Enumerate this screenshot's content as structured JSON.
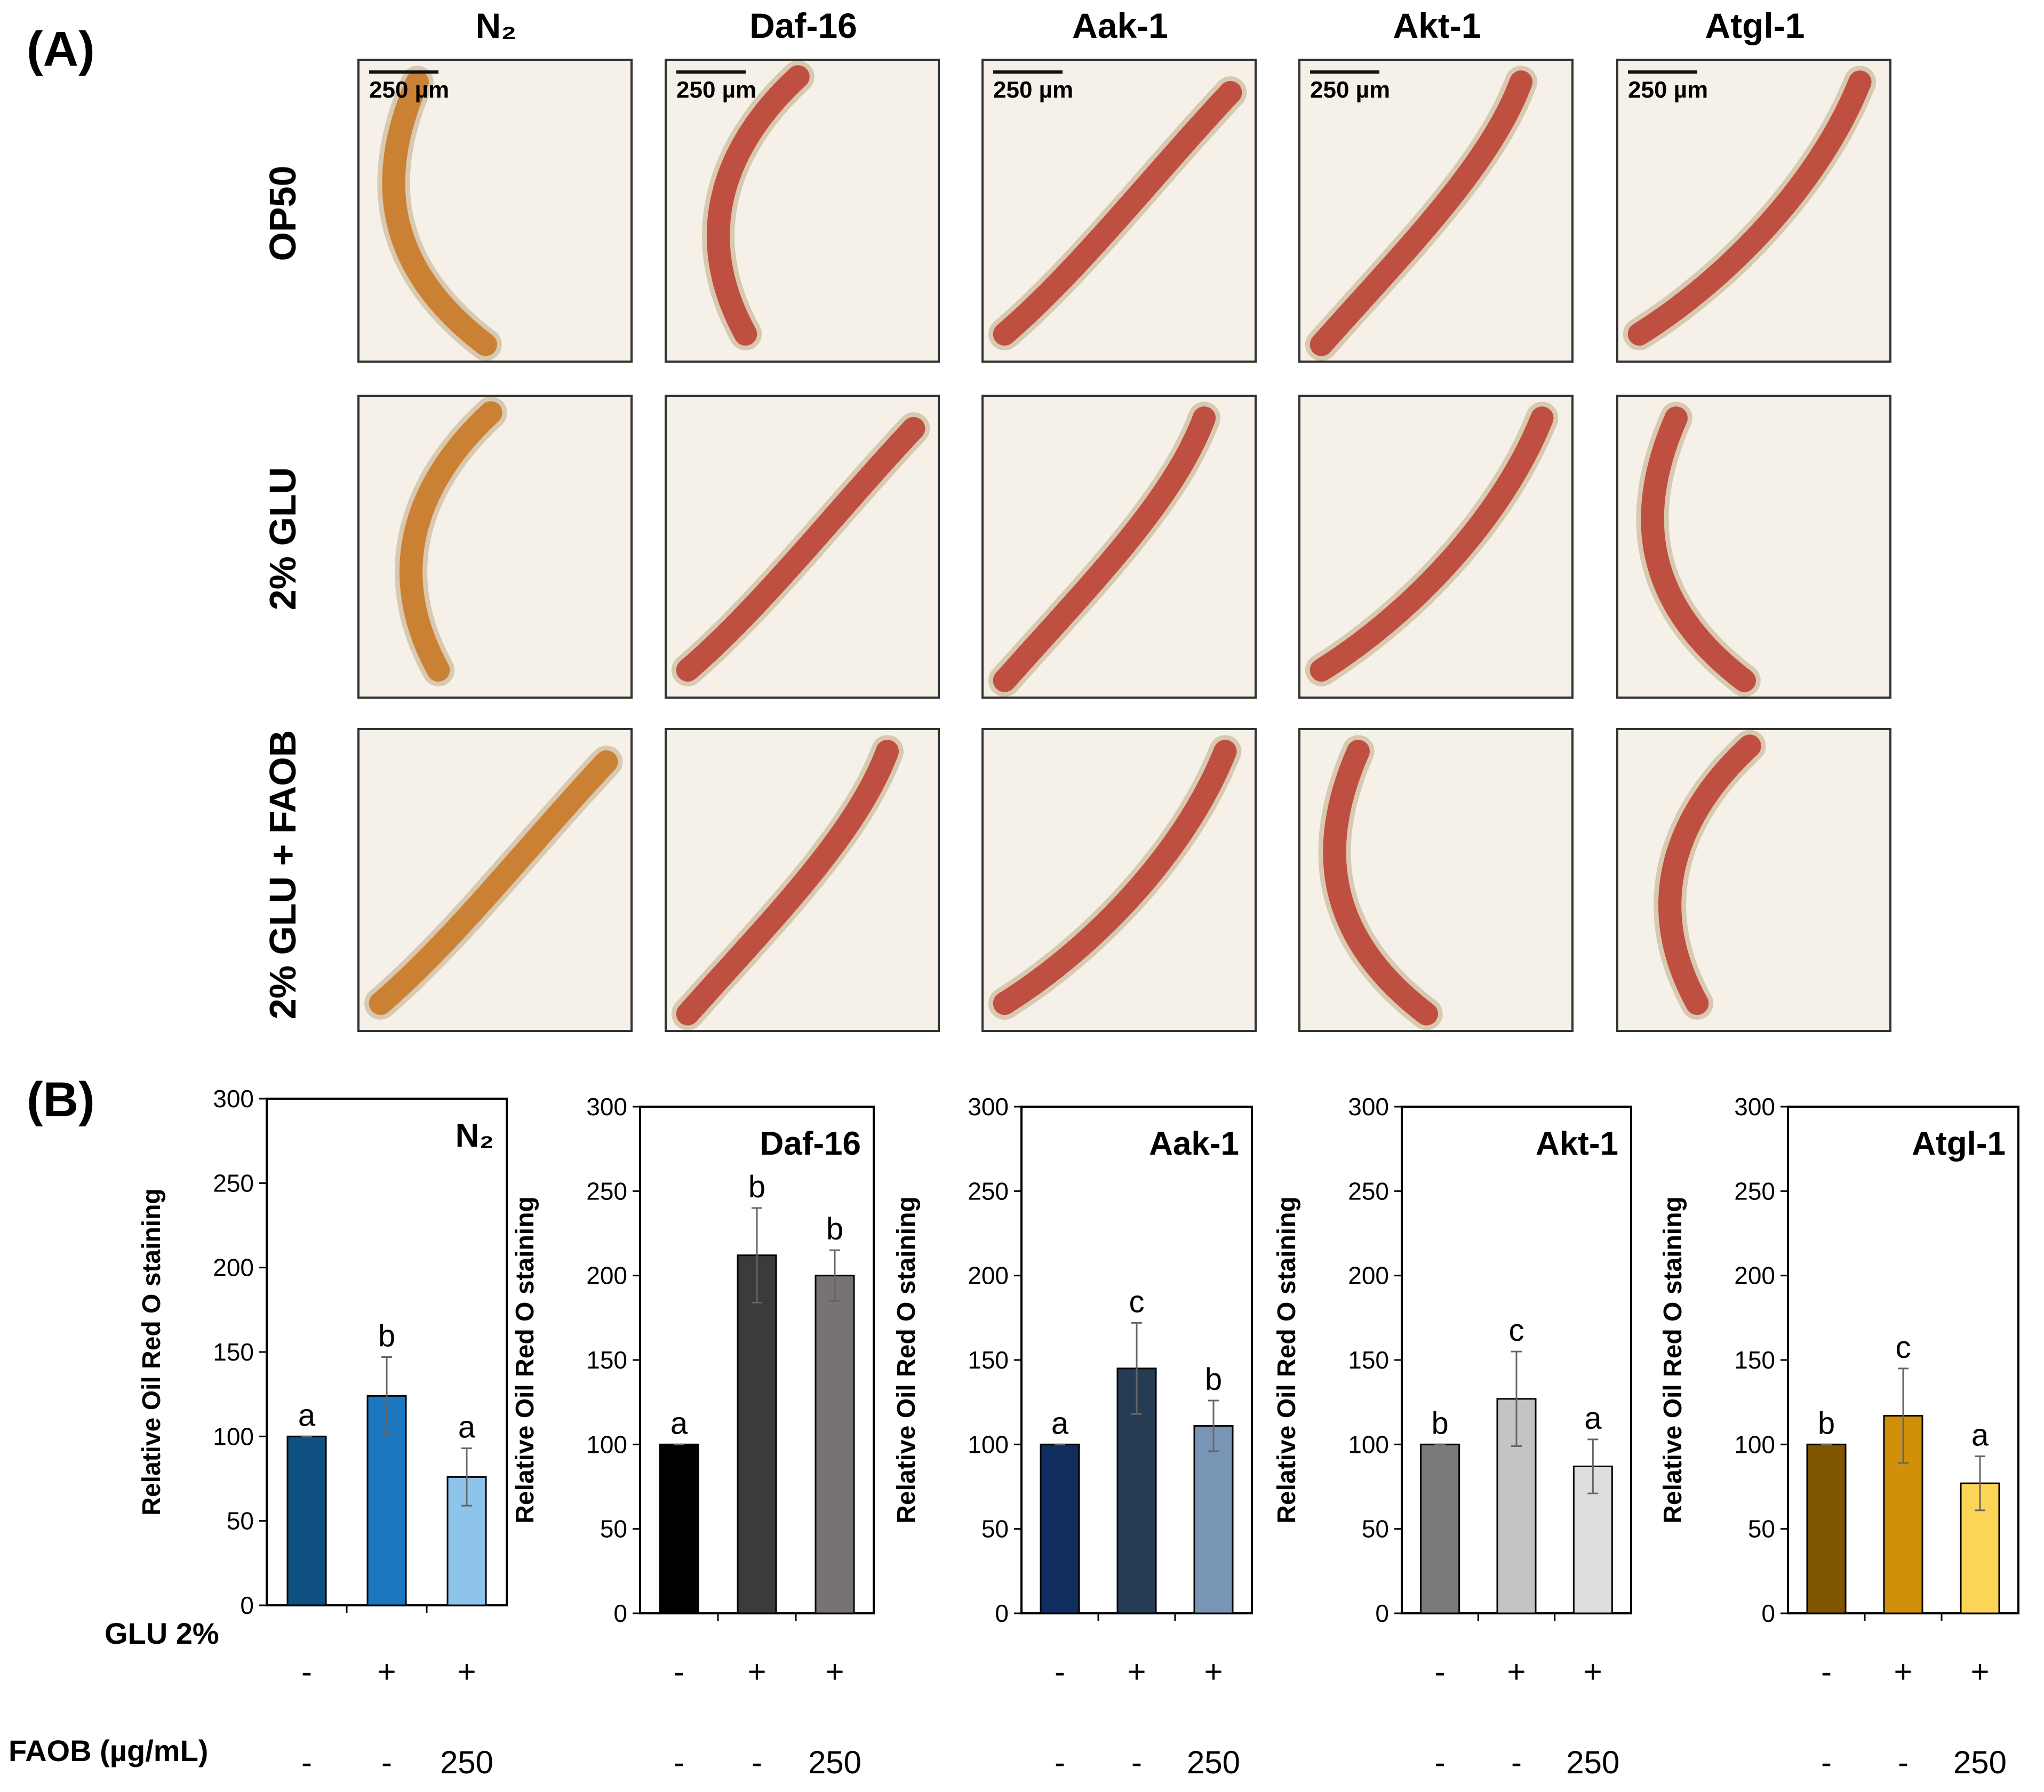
{
  "panel_a_label": "(A)",
  "panel_b_label": "(B)",
  "strains": [
    "N₂",
    "Daf-16",
    "Aak-1",
    "Akt-1",
    "Atgl-1"
  ],
  "conditions": [
    "OP50",
    "2% GLU",
    "2% GLU + FAOB"
  ],
  "scale_bar_label": "250 µm",
  "x_rows": {
    "glu_label": "GLU 2%",
    "faob_label": "FAOB (µg/mL)",
    "glu_values": [
      "-",
      "+",
      "+"
    ],
    "faob_values": [
      "-",
      "-",
      "250"
    ]
  },
  "colors": {
    "worm_n2": "#c8741f",
    "worm_red": "#b83a2e",
    "img_bg": "#f6f1e8"
  },
  "chart_data": [
    {
      "type": "bar",
      "title": "N₂",
      "ylabel": "Relative Oil Red O staining",
      "ylim": [
        0,
        300
      ],
      "yticks": [
        "0",
        "50",
        "100",
        "150",
        "200",
        "250",
        "300"
      ],
      "values": [
        100,
        124,
        76
      ],
      "errors": [
        0,
        23,
        17
      ],
      "letters": [
        "a",
        "b",
        "a"
      ],
      "colors": [
        "#0e5082",
        "#1b78c0",
        "#8ec3ec"
      ]
    },
    {
      "type": "bar",
      "title": "Daf-16",
      "ylabel": "Relative Oil Red O staining",
      "ylim": [
        0,
        300
      ],
      "yticks": [
        "0",
        "50",
        "100",
        "150",
        "200",
        "250",
        "300"
      ],
      "values": [
        100,
        212,
        200
      ],
      "errors": [
        0,
        28,
        15
      ],
      "letters": [
        "a",
        "b",
        "b"
      ],
      "colors": [
        "#000000",
        "#3b3b3b",
        "#787373"
      ]
    },
    {
      "type": "bar",
      "title": "Aak-1",
      "ylabel": "Relative Oil Red O staining",
      "ylim": [
        0,
        300
      ],
      "yticks": [
        "0",
        "50",
        "100",
        "150",
        "200",
        "250",
        "300"
      ],
      "values": [
        100,
        145,
        111
      ],
      "errors": [
        0,
        27,
        15
      ],
      "letters": [
        "a",
        "c",
        "b"
      ],
      "colors": [
        "#0f2d5e",
        "#263c55",
        "#7995b5"
      ]
    },
    {
      "type": "bar",
      "title": "Akt-1",
      "ylabel": "Relative Oil Red O staining",
      "ylim": [
        0,
        300
      ],
      "yticks": [
        "0",
        "50",
        "100",
        "150",
        "200",
        "250",
        "300"
      ],
      "values": [
        100,
        127,
        87
      ],
      "errors": [
        0,
        28,
        16
      ],
      "letters": [
        "b",
        "c",
        "a"
      ],
      "colors": [
        "#7a7a7a",
        "#c4c4c4",
        "#dedede"
      ]
    },
    {
      "type": "bar",
      "title": "Atgl-1",
      "ylabel": "Relative Oil Red O staining",
      "ylim": [
        0,
        300
      ],
      "yticks": [
        "0",
        "50",
        "100",
        "150",
        "200",
        "250",
        "300"
      ],
      "values": [
        100,
        117,
        77
      ],
      "errors": [
        0,
        28,
        16
      ],
      "letters": [
        "b",
        "c",
        "a"
      ],
      "colors": [
        "#7f5500",
        "#d0900a",
        "#fcd557"
      ]
    }
  ]
}
